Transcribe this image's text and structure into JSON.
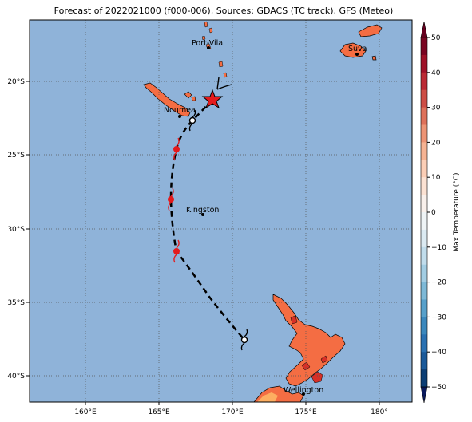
{
  "title": "Forecast of 2022021000 (f000-006), Sources: GDACS (TC track), GFS (Meteo)",
  "map": {
    "lon_range": [
      156,
      182.3
    ],
    "lat_range": [
      -41.8,
      -15.6
    ],
    "ocean_color": "#8fb3d9",
    "land_color": "#f46d43",
    "land_hot_color": "#d73027",
    "land_warm_color": "#fdae61",
    "grid": "dotted",
    "x_ticks": [
      "160°E",
      "165°E",
      "170°E",
      "175°E",
      "180°"
    ],
    "y_ticks": [
      "20°S",
      "25°S",
      "30°S",
      "35°S",
      "40°S"
    ]
  },
  "cities": [
    {
      "name": "Port-Vila",
      "lon": 168.3,
      "lat": -17.7
    },
    {
      "name": "Suva",
      "lon": 178.4,
      "lat": -18.1
    },
    {
      "name": "Noumea",
      "lon": 166.4,
      "lat": -22.3
    },
    {
      "name": "Kingston",
      "lon": 168.0,
      "lat": -29.0
    },
    {
      "name": "Wellington",
      "lon": 174.8,
      "lat": -41.3
    }
  ],
  "track": {
    "current": {
      "lon": 168.6,
      "lat": -21.2
    },
    "points": [
      {
        "lon": 168.6,
        "lat": -21.2,
        "type": "low"
      },
      {
        "lon": 167.3,
        "lat": -22.6,
        "type": "low"
      },
      {
        "lon": 166.3,
        "lat": -24.6,
        "type": "storm"
      },
      {
        "lon": 165.9,
        "lat": -28.0,
        "type": "storm"
      },
      {
        "lon": 166.2,
        "lat": -31.5,
        "type": "storm"
      },
      {
        "lon": 170.8,
        "lat": -37.5,
        "type": "low"
      }
    ]
  },
  "colorbar": {
    "label": "Max Temperature (°C)",
    "ticks": [
      "50",
      "40",
      "30",
      "20",
      "10",
      "0",
      "−10",
      "−20",
      "−30",
      "−40",
      "−50"
    ],
    "colors": [
      "#67001f",
      "#b2182b",
      "#d6604d",
      "#f4a582",
      "#fddbc7",
      "#f7f7f7",
      "#d1e5f0",
      "#92c5de",
      "#4393c3",
      "#2166ac",
      "#053061"
    ]
  }
}
